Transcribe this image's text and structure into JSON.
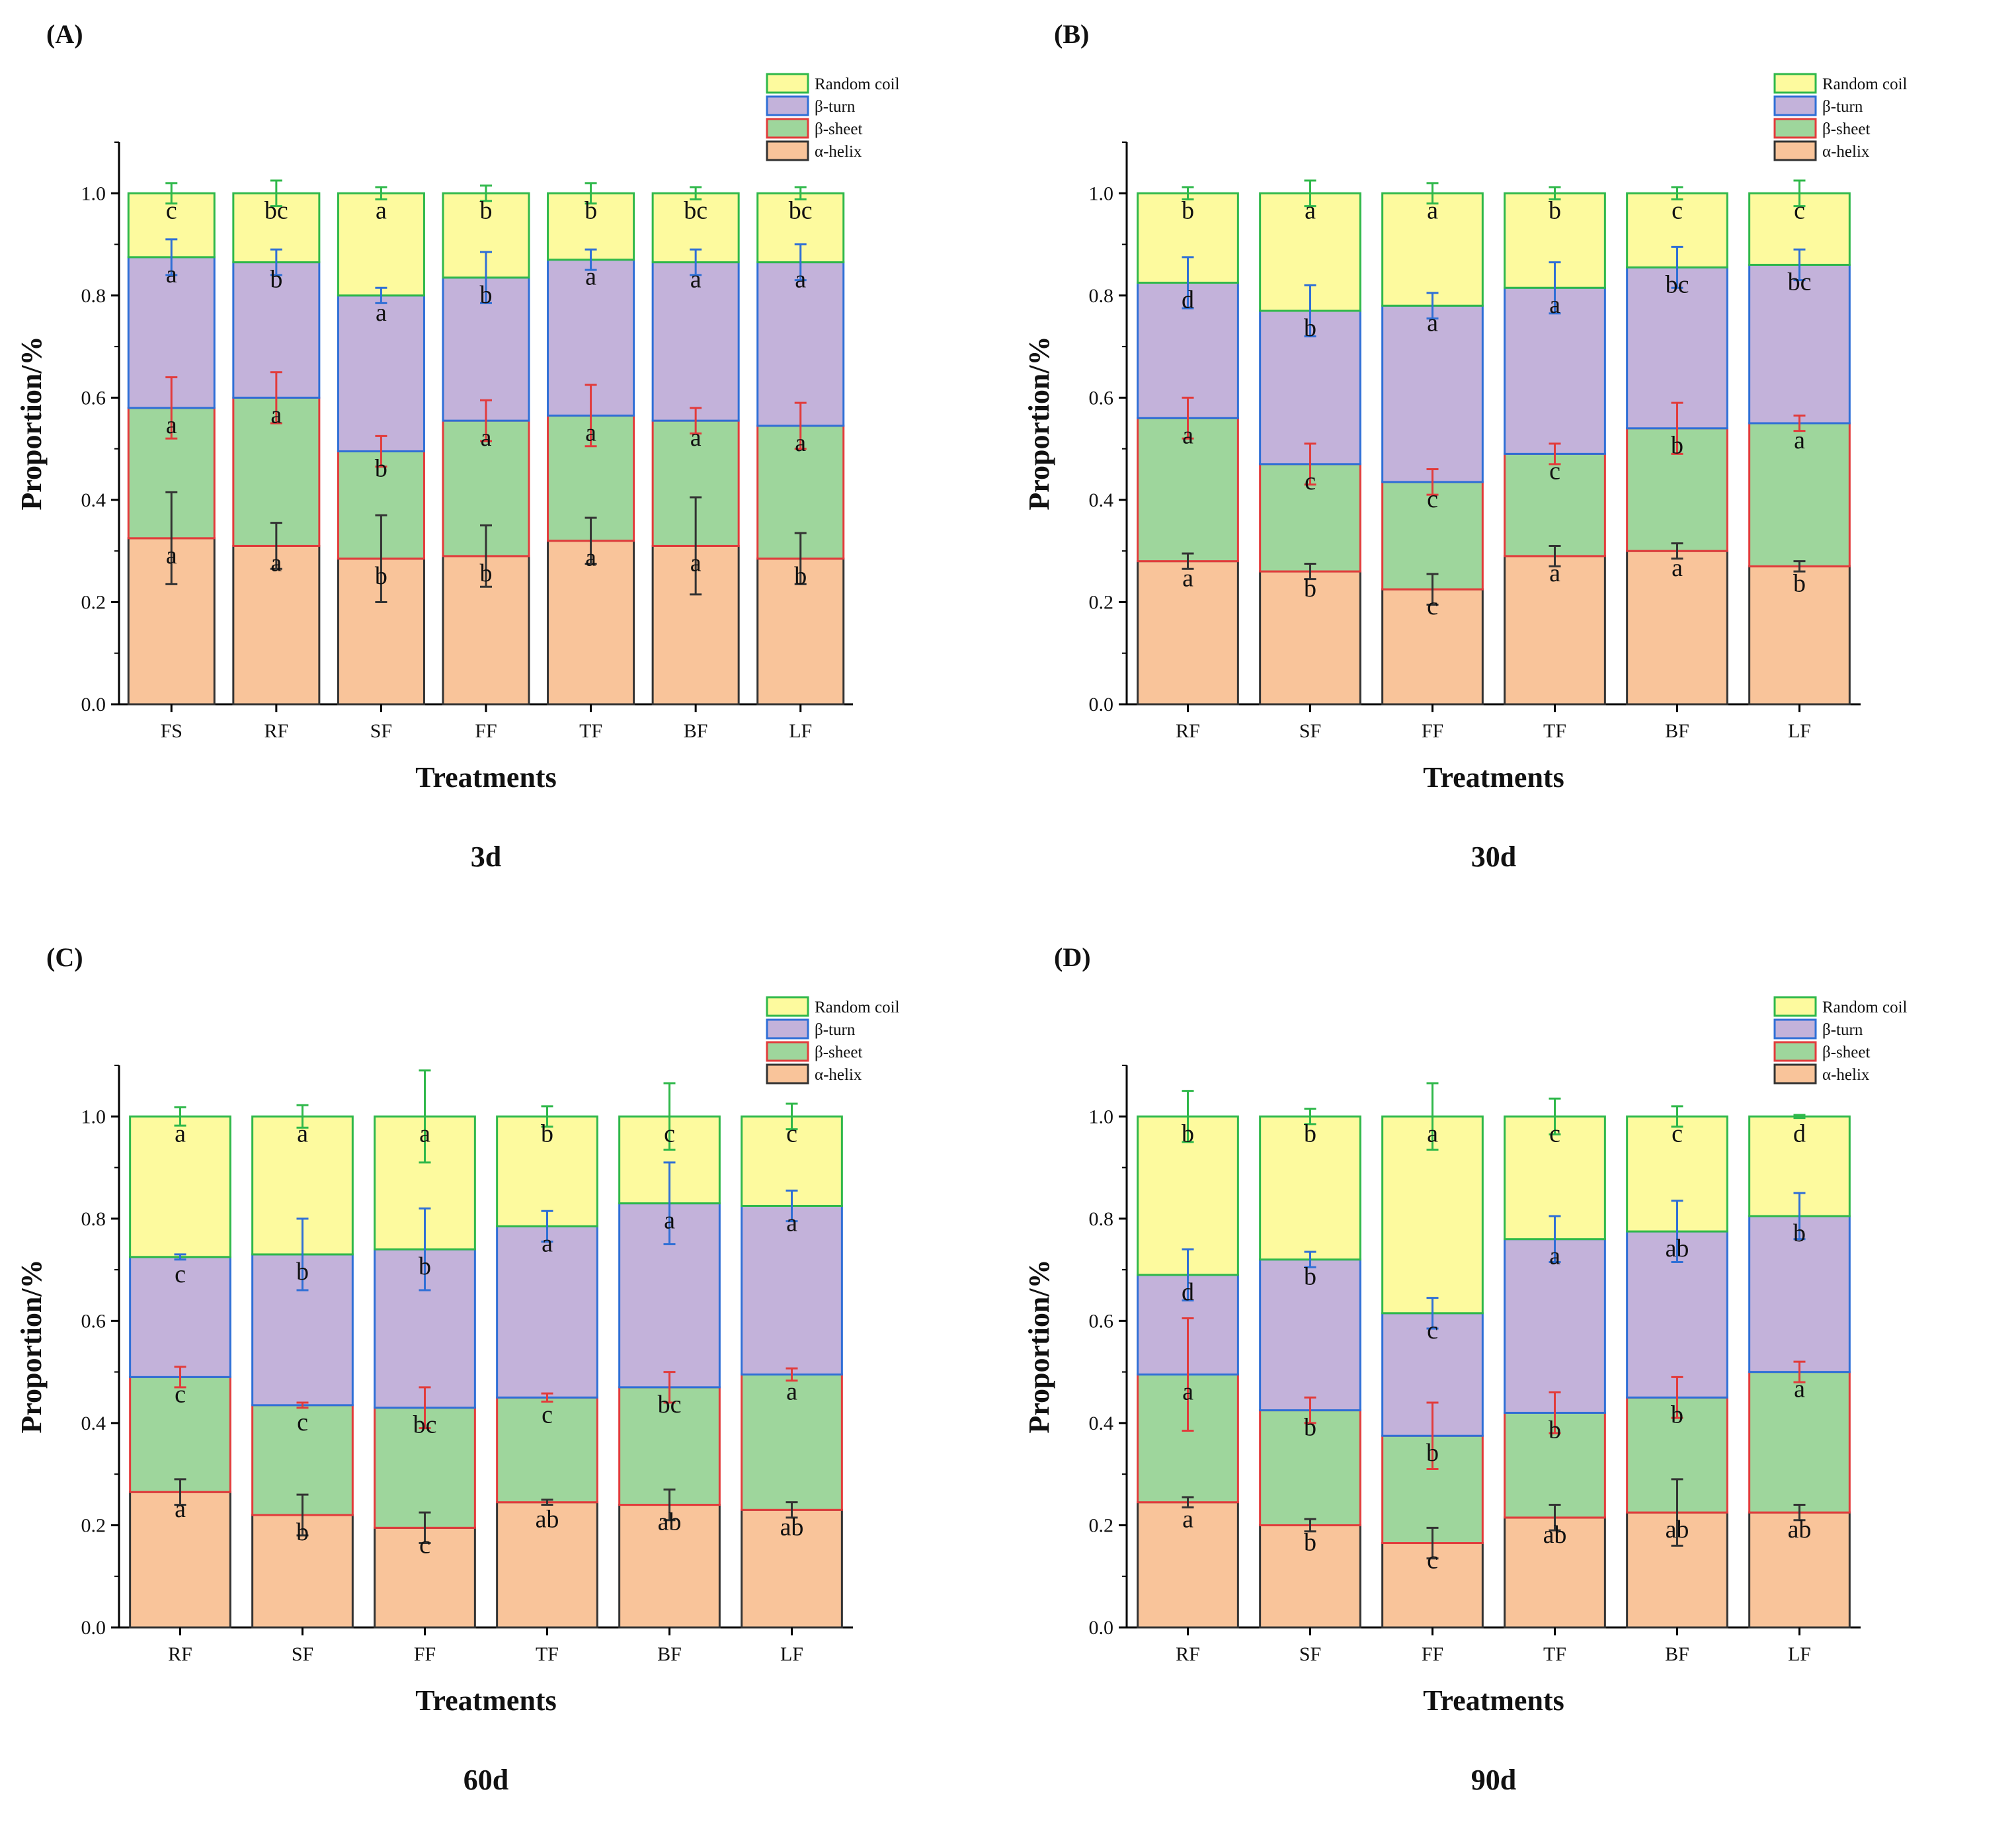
{
  "colors": {
    "alpha_helix_fill": "#f9c49a",
    "alpha_helix_edge": "#333333",
    "beta_sheet_fill": "#9ed69c",
    "beta_sheet_edge": "#e23b3b",
    "beta_turn_fill": "#c3b2da",
    "beta_turn_edge": "#2f6fd6",
    "random_coil_fill": "#fdfa9e",
    "random_coil_edge": "#2fb84a",
    "axis": "#000000"
  },
  "chart_data": [
    {
      "type": "bar",
      "stacked": true,
      "panel_label": "(A)",
      "subtitle": "3d",
      "xlabel": "Treatments",
      "ylabel": "Proportion/%",
      "ylim": [
        0,
        1.1
      ],
      "yticks": [
        "0.0",
        "0.2",
        "0.4",
        "0.6",
        "0.8",
        "1.0"
      ],
      "legend": [
        "Random coil",
        "β-turn",
        "β-sheet",
        "α-helix"
      ],
      "legend_position": "top-right",
      "categories": [
        "FS",
        "RF",
        "SF",
        "FF",
        "TF",
        "BF",
        "LF"
      ],
      "series": [
        {
          "name": "α-helix",
          "values": [
            0.325,
            0.31,
            0.285,
            0.29,
            0.32,
            0.31,
            0.285
          ],
          "errors": [
            0.09,
            0.045,
            0.085,
            0.06,
            0.045,
            0.095,
            0.05
          ],
          "letters": [
            "a",
            "a",
            "b",
            "b",
            "a",
            "a",
            "b"
          ]
        },
        {
          "name": "β-sheet",
          "values": [
            0.255,
            0.29,
            0.21,
            0.265,
            0.245,
            0.245,
            0.26
          ],
          "errors": [
            0.06,
            0.05,
            0.03,
            0.04,
            0.06,
            0.025,
            0.045
          ],
          "letters": [
            "a",
            "a",
            "b",
            "a",
            "a",
            "a",
            "a"
          ]
        },
        {
          "name": "β-turn",
          "values": [
            0.295,
            0.265,
            0.305,
            0.28,
            0.305,
            0.31,
            0.32
          ],
          "errors": [
            0.035,
            0.025,
            0.015,
            0.05,
            0.02,
            0.025,
            0.035
          ],
          "letters": [
            "a",
            "b",
            "a",
            "b",
            "a",
            "a",
            "a"
          ]
        },
        {
          "name": "Random coil",
          "values": [
            0.125,
            0.135,
            0.2,
            0.165,
            0.13,
            0.135,
            0.135
          ],
          "errors": [
            0.02,
            0.025,
            0.012,
            0.015,
            0.02,
            0.012,
            0.012
          ],
          "letters": [
            "c",
            "bc",
            "a",
            "b",
            "b",
            "bc",
            "bc"
          ]
        }
      ]
    },
    {
      "type": "bar",
      "stacked": true,
      "panel_label": "(B)",
      "subtitle": "30d",
      "xlabel": "Treatments",
      "ylabel": "Proportion/%",
      "ylim": [
        0,
        1.1
      ],
      "yticks": [
        "0.0",
        "0.2",
        "0.4",
        "0.6",
        "0.8",
        "1.0"
      ],
      "legend": [
        "Random coil",
        "β-turn",
        "β-sheet",
        "α-helix"
      ],
      "legend_position": "top-right",
      "categories": [
        "RF",
        "SF",
        "FF",
        "TF",
        "BF",
        "LF"
      ],
      "series": [
        {
          "name": "α-helix",
          "values": [
            0.28,
            0.26,
            0.225,
            0.29,
            0.3,
            0.27
          ],
          "errors": [
            0.015,
            0.015,
            0.03,
            0.02,
            0.015,
            0.01
          ],
          "letters": [
            "a",
            "b",
            "c",
            "a",
            "a",
            "b"
          ]
        },
        {
          "name": "β-sheet",
          "values": [
            0.28,
            0.21,
            0.21,
            0.2,
            0.24,
            0.28
          ],
          "errors": [
            0.04,
            0.04,
            0.025,
            0.02,
            0.05,
            0.015
          ],
          "letters": [
            "a",
            "c",
            "c",
            "c",
            "b",
            "a"
          ]
        },
        {
          "name": "β-turn",
          "values": [
            0.265,
            0.3,
            0.345,
            0.325,
            0.315,
            0.31
          ],
          "errors": [
            0.05,
            0.05,
            0.025,
            0.05,
            0.04,
            0.03
          ],
          "letters": [
            "d",
            "b",
            "a",
            "a",
            "bc",
            "bc"
          ]
        },
        {
          "name": "Random coil",
          "values": [
            0.175,
            0.23,
            0.22,
            0.185,
            0.145,
            0.14
          ],
          "errors": [
            0.012,
            0.025,
            0.02,
            0.012,
            0.012,
            0.025
          ],
          "letters": [
            "b",
            "a",
            "a",
            "b",
            "c",
            "c"
          ]
        }
      ]
    },
    {
      "type": "bar",
      "stacked": true,
      "panel_label": "(C)",
      "subtitle": "60d",
      "xlabel": "Treatments",
      "ylabel": "Proportion/%",
      "ylim": [
        0,
        1.1
      ],
      "yticks": [
        "0.0",
        "0.2",
        "0.4",
        "0.6",
        "0.8",
        "1.0"
      ],
      "legend": [
        "Random coil",
        "β-turn",
        "β-sheet",
        "α-helix"
      ],
      "legend_position": "top-right",
      "categories": [
        "RF",
        "SF",
        "FF",
        "TF",
        "BF",
        "LF"
      ],
      "series": [
        {
          "name": "α-helix",
          "values": [
            0.265,
            0.22,
            0.195,
            0.245,
            0.24,
            0.23
          ],
          "errors": [
            0.025,
            0.04,
            0.03,
            0.005,
            0.03,
            0.015
          ],
          "letters": [
            "a",
            "b",
            "c",
            "ab",
            "ab",
            "ab"
          ]
        },
        {
          "name": "β-sheet",
          "values": [
            0.225,
            0.215,
            0.235,
            0.205,
            0.23,
            0.265
          ],
          "errors": [
            0.02,
            0.005,
            0.04,
            0.008,
            0.03,
            0.012
          ],
          "letters": [
            "c",
            "c",
            "bc",
            "c",
            "bc",
            "a"
          ]
        },
        {
          "name": "β-turn",
          "values": [
            0.235,
            0.295,
            0.31,
            0.335,
            0.36,
            0.33
          ],
          "errors": [
            0.005,
            0.07,
            0.08,
            0.03,
            0.08,
            0.03
          ],
          "letters": [
            "c",
            "b",
            "b",
            "a",
            "a",
            "a"
          ]
        },
        {
          "name": "Random coil",
          "values": [
            0.275,
            0.27,
            0.26,
            0.215,
            0.17,
            0.175
          ],
          "errors": [
            0.018,
            0.022,
            0.09,
            0.02,
            0.065,
            0.025
          ],
          "letters": [
            "a",
            "a",
            "a",
            "b",
            "c",
            "c"
          ]
        }
      ]
    },
    {
      "type": "bar",
      "stacked": true,
      "panel_label": "(D)",
      "subtitle": "90d",
      "xlabel": "Treatments",
      "ylabel": "Proportion/%",
      "ylim": [
        0,
        1.1
      ],
      "yticks": [
        "0.0",
        "0.2",
        "0.4",
        "0.6",
        "0.8",
        "1.0"
      ],
      "legend": [
        "Random coil",
        "β-turn",
        "β-sheet",
        "α-helix"
      ],
      "legend_position": "top-right",
      "categories": [
        "RF",
        "SF",
        "FF",
        "TF",
        "BF",
        "LF"
      ],
      "series": [
        {
          "name": "α-helix",
          "values": [
            0.245,
            0.2,
            0.165,
            0.215,
            0.225,
            0.225
          ],
          "errors": [
            0.01,
            0.012,
            0.03,
            0.025,
            0.065,
            0.015
          ],
          "letters": [
            "a",
            "b",
            "c",
            "ab",
            "ab",
            "ab"
          ]
        },
        {
          "name": "β-sheet",
          "values": [
            0.25,
            0.225,
            0.21,
            0.205,
            0.225,
            0.275
          ],
          "errors": [
            0.11,
            0.025,
            0.065,
            0.04,
            0.04,
            0.02
          ],
          "letters": [
            "a",
            "b",
            "b",
            "b",
            "b",
            "a"
          ]
        },
        {
          "name": "β-turn",
          "values": [
            0.195,
            0.295,
            0.24,
            0.34,
            0.325,
            0.305
          ],
          "errors": [
            0.05,
            0.015,
            0.03,
            0.045,
            0.06,
            0.045
          ],
          "letters": [
            "d",
            "b",
            "c",
            "a",
            "ab",
            "b"
          ]
        },
        {
          "name": "Random coil",
          "values": [
            0.31,
            0.28,
            0.385,
            0.24,
            0.225,
            0.195
          ],
          "errors": [
            0.05,
            0.015,
            0.065,
            0.035,
            0.02,
            0.003
          ],
          "letters": [
            "b",
            "b",
            "a",
            "c",
            "c",
            "d"
          ]
        }
      ]
    }
  ]
}
